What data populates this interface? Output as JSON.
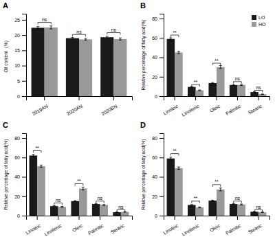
{
  "chart_data": [
    {
      "type": "bar",
      "title": "A",
      "categories": [
        "2019AN",
        "2020AN",
        "2020BN"
      ],
      "series": [
        {
          "name": "LO",
          "color": "#1a1a1a",
          "values": [
            22.4,
            19.0,
            19.3
          ],
          "errors": [
            0.4,
            0.25,
            0.3
          ]
        },
        {
          "name": "HO",
          "color": "#999999",
          "values": [
            22.5,
            18.6,
            18.7
          ],
          "errors": [
            0.5,
            0.25,
            0.35
          ]
        }
      ],
      "ylabel": "Oil content（%）",
      "ylim": [
        0,
        27
      ],
      "yticks": [
        0,
        5,
        10,
        15,
        20,
        25
      ],
      "annotations": [
        {
          "text": "ns",
          "y": 24.2
        },
        {
          "text": "ns",
          "y": 20.2
        },
        {
          "text": "ns",
          "y": 20.8
        }
      ]
    },
    {
      "type": "bar",
      "title": "B",
      "categories": [
        "Linoleic",
        "Linolenic",
        "Oleic",
        "Palmitic",
        "Stearic"
      ],
      "series": [
        {
          "name": "LO",
          "color": "#1a1a1a",
          "values": [
            59.0,
            9.5,
            13.5,
            11.5,
            4.2
          ],
          "errors": [
            1.2,
            0.4,
            0.5,
            0.5,
            0.25
          ]
        },
        {
          "name": "HO",
          "color": "#999999",
          "values": [
            45.0,
            6.0,
            30.0,
            11.5,
            2.0
          ],
          "errors": [
            1.2,
            0.35,
            1.5,
            0.5,
            0.2
          ]
        }
      ],
      "ylabel": "Relative percentage of fatty acid(%)",
      "ylim": [
        0,
        85
      ],
      "yticks": [
        0,
        20,
        40,
        60,
        80
      ],
      "annotations": [
        {
          "text": "**",
          "y": 63
        },
        {
          "text": "**",
          "y": 12
        },
        {
          "text": "**",
          "y": 34
        },
        {
          "text": "ns",
          "y": 15
        },
        {
          "text": "ns",
          "y": 6
        }
      ],
      "legend": "upper right"
    },
    {
      "type": "bar",
      "title": "C",
      "categories": [
        "Linoleic",
        "Linolenic",
        "Oleic",
        "Palmitic",
        "Stearic"
      ],
      "series": [
        {
          "name": "LO",
          "color": "#1a1a1a",
          "values": [
            62.0,
            9.8,
            15.0,
            12.0,
            3.5
          ],
          "errors": [
            1.2,
            0.5,
            0.5,
            0.5,
            0.3
          ]
        },
        {
          "name": "HO",
          "color": "#999999",
          "values": [
            51.0,
            9.0,
            28.0,
            11.0,
            3.8
          ],
          "errors": [
            1.2,
            0.5,
            1.5,
            0.5,
            0.3
          ]
        }
      ],
      "ylabel": "Relative percentage of fatty acid(%)",
      "ylim": [
        0,
        85
      ],
      "yticks": [
        0,
        20,
        40,
        60,
        80
      ],
      "annotations": [
        {
          "text": "**",
          "y": 67
        },
        {
          "text": "ns",
          "y": 13
        },
        {
          "text": "**",
          "y": 33
        },
        {
          "text": "ns",
          "y": 15
        },
        {
          "text": "ns",
          "y": 6
        }
      ]
    },
    {
      "type": "bar",
      "title": "D",
      "categories": [
        "Linoleic",
        "Linolenic",
        "Oleic",
        "Palmitic",
        "Stearic"
      ],
      "series": [
        {
          "name": "LO",
          "color": "#1a1a1a",
          "values": [
            59.0,
            11.0,
            15.5,
            12.0,
            4.0
          ],
          "errors": [
            1.2,
            0.5,
            0.5,
            0.5,
            0.3
          ]
        },
        {
          "name": "HO",
          "color": "#999999",
          "values": [
            49.0,
            8.5,
            27.0,
            11.5,
            3.5
          ],
          "errors": [
            1.2,
            0.5,
            1.5,
            0.5,
            0.3
          ]
        }
      ],
      "ylabel": "Relative percentage of fatty acid(%)",
      "ylim": [
        0,
        85
      ],
      "yticks": [
        0,
        20,
        40,
        60,
        80
      ],
      "annotations": [
        {
          "text": "**",
          "y": 64
        },
        {
          "text": "**",
          "y": 15
        },
        {
          "text": "**",
          "y": 32
        },
        {
          "text": "ns",
          "y": 15
        },
        {
          "text": "ns",
          "y": 6
        }
      ]
    }
  ]
}
